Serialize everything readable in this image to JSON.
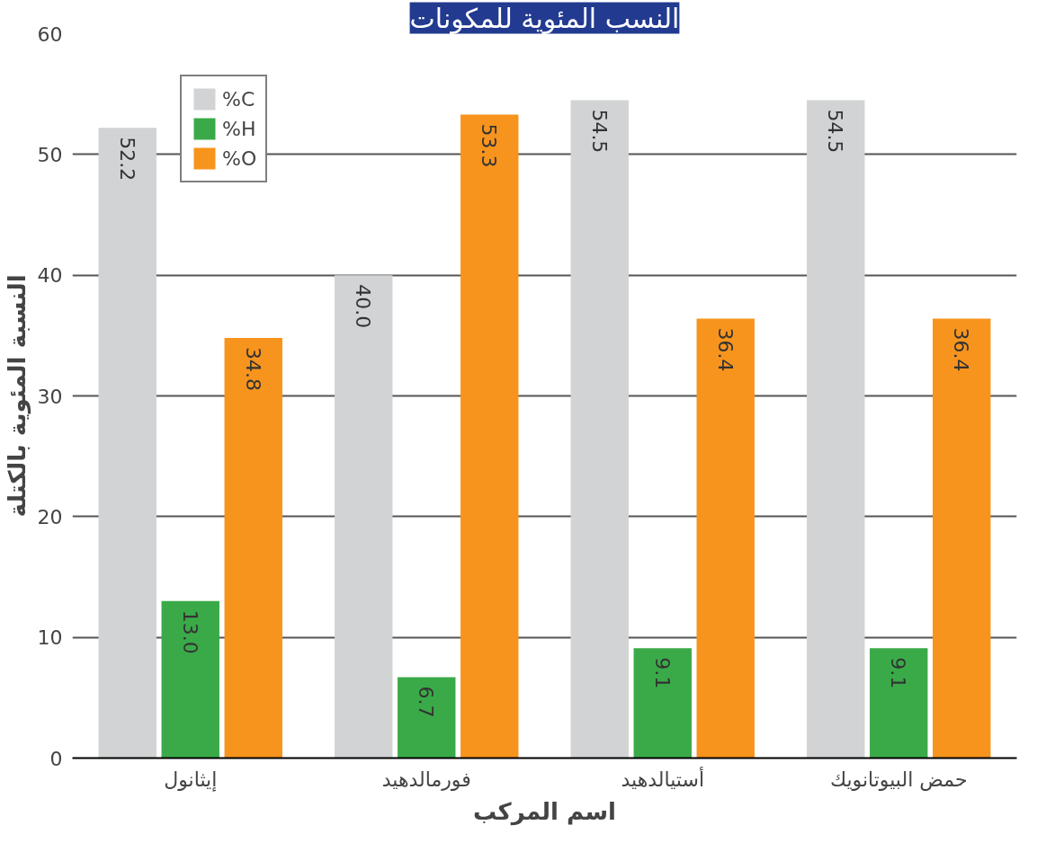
{
  "chart_data": {
    "type": "bar",
    "title": "النسب المئوية للمكونات",
    "xlabel": "اسم المركب",
    "ylabel": "النسبة المئوية بالكتلة",
    "categories": [
      "إيثانول",
      "فورمالدهيد",
      "أستيالدهيد",
      "حمض البيوتانويك"
    ],
    "series": [
      {
        "name": "%C",
        "color": "#d1d3d4",
        "values": [
          52.2,
          40.0,
          54.5,
          54.5
        ],
        "value_labels": [
          "52.2",
          "40.0",
          "54.5",
          "54.5"
        ]
      },
      {
        "name": "%H",
        "color": "#3aaa48",
        "values": [
          13.0,
          6.7,
          9.1,
          9.1
        ],
        "value_labels": [
          "13.0",
          "6.7",
          "9.1",
          "9.1"
        ]
      },
      {
        "name": "%O",
        "color": "#f7941d",
        "values": [
          34.8,
          53.3,
          36.4,
          36.4
        ],
        "value_labels": [
          "34.8",
          "53.3",
          "36.4",
          "36.4"
        ]
      }
    ],
    "ylim": [
      0,
      60
    ],
    "yticks": [
      0,
      10,
      20,
      30,
      40,
      50,
      60
    ],
    "grid": "y",
    "legend": "top left"
  }
}
